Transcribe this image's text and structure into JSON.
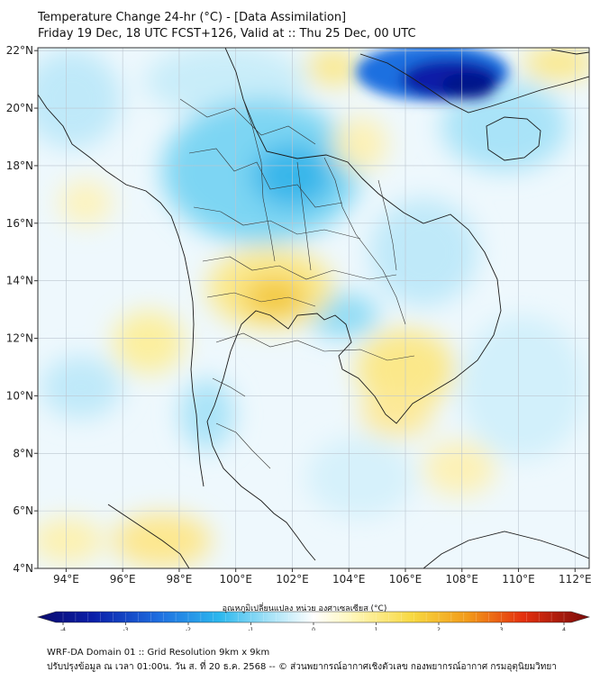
{
  "header": {
    "title_line1": "Temperature Change 24-hr (°C) - [Data Assimilation]",
    "title_line2": "Friday 19 Dec, 18 UTC FCST+126, Valid at :: Thu 25 Dec, 00 UTC"
  },
  "map": {
    "lat_ticks": [
      {
        "value": 22,
        "label": "22°N"
      },
      {
        "value": 20,
        "label": "20°N"
      },
      {
        "value": 18,
        "label": "18°N"
      },
      {
        "value": 16,
        "label": "16°N"
      },
      {
        "value": 14,
        "label": "14°N"
      },
      {
        "value": 12,
        "label": "12°N"
      },
      {
        "value": 10,
        "label": "10°N"
      },
      {
        "value": 8,
        "label": "8°N"
      },
      {
        "value": 6,
        "label": "6°N"
      },
      {
        "value": 4,
        "label": "4°N"
      }
    ],
    "lon_ticks": [
      {
        "value": 94,
        "label": "94°E"
      },
      {
        "value": 96,
        "label": "96°E"
      },
      {
        "value": 98,
        "label": "98°E"
      },
      {
        "value": 100,
        "label": "100°E"
      },
      {
        "value": 102,
        "label": "102°E"
      },
      {
        "value": 104,
        "label": "104°E"
      },
      {
        "value": 106,
        "label": "106°E"
      },
      {
        "value": 108,
        "label": "108°E"
      },
      {
        "value": 110,
        "label": "110°E"
      },
      {
        "value": 112,
        "label": "112°E"
      }
    ]
  },
  "colorbar": {
    "label": "อุณหภูมิเปลี่ยนแปลง หน่วย องศาเซลเซียส (°C)",
    "ticks": [
      {
        "value": -4,
        "label": "-4"
      },
      {
        "value": -3,
        "label": "-3"
      },
      {
        "value": -2,
        "label": "-2"
      },
      {
        "value": -1,
        "label": "-1"
      },
      {
        "value": 0,
        "label": "0"
      },
      {
        "value": 1,
        "label": "1"
      },
      {
        "value": 2,
        "label": "2"
      },
      {
        "value": 3,
        "label": "3"
      },
      {
        "value": 4,
        "label": "4"
      }
    ]
  },
  "footer": {
    "line1": "WRF-DA Domain 01 :: Grid Resolution 9km x 9km",
    "line2": "ปรับปรุงข้อมูล ณ เวลา 01:00น. วัน ส. ที่ 20 ธ.ค. 2568 -- © ส่วนพยากรณ์อากาศเชิงตัวเลข กองพยากรณ์อากาศ กรมอุตุนิยมวิทยา"
  },
  "colors": {
    "cold_strong": "#0a1ea8",
    "cold": "#4cc6ef",
    "cool": "#bfe9f9",
    "warm": "#fbe88a",
    "warm_strong": "#f2c030",
    "border": "#111111"
  }
}
